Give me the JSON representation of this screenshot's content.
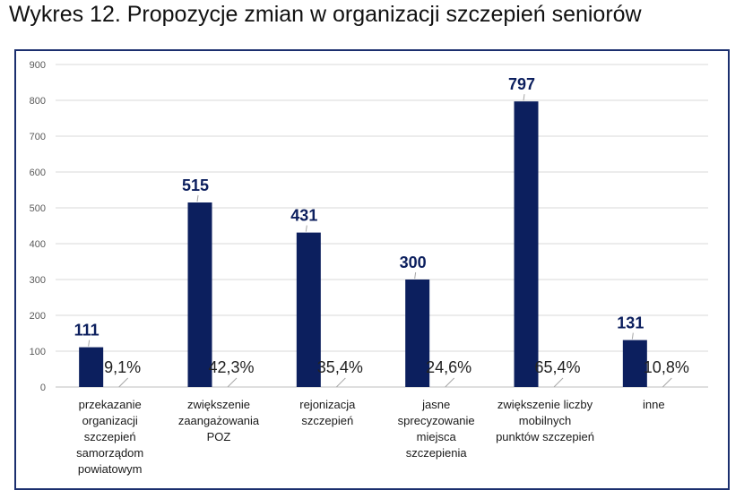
{
  "title": "Wykres 12. Propozycje zmian w organizacji szczepień seniorów",
  "colors": {
    "bar": "#0c1f5e",
    "value_label": "#0c1f5e",
    "axis_text": "#595959",
    "frame": "#1b2f6e",
    "grid": "#d9d9d9"
  },
  "chart_data": {
    "type": "bar",
    "categories": [
      [
        "przekazanie",
        "organizacji",
        "szczepień",
        "samorządom",
        "powiatowym"
      ],
      [
        "zwiększenie",
        "zaangażowania",
        "POZ"
      ],
      [
        "rejonizacja",
        "szczepień"
      ],
      [
        "jasne",
        "sprecyzowanie",
        "miejsca",
        "szczepienia"
      ],
      [
        "zwiększenie liczby",
        "mobilnych",
        "punktów szczepień"
      ],
      [
        "inne"
      ]
    ],
    "values": [
      111,
      515,
      431,
      300,
      797,
      131
    ],
    "value_labels": [
      "111",
      "515",
      "431",
      "300",
      "797",
      "131"
    ],
    "percent_labels": [
      "9,1%",
      "42,3%",
      "35,4%",
      "24,6%",
      "65,4%",
      "10,8%"
    ],
    "ylim": [
      0,
      900
    ],
    "yticks": [
      0,
      100,
      200,
      300,
      400,
      500,
      600,
      700,
      800,
      900
    ],
    "grid": true,
    "legend": "none"
  }
}
